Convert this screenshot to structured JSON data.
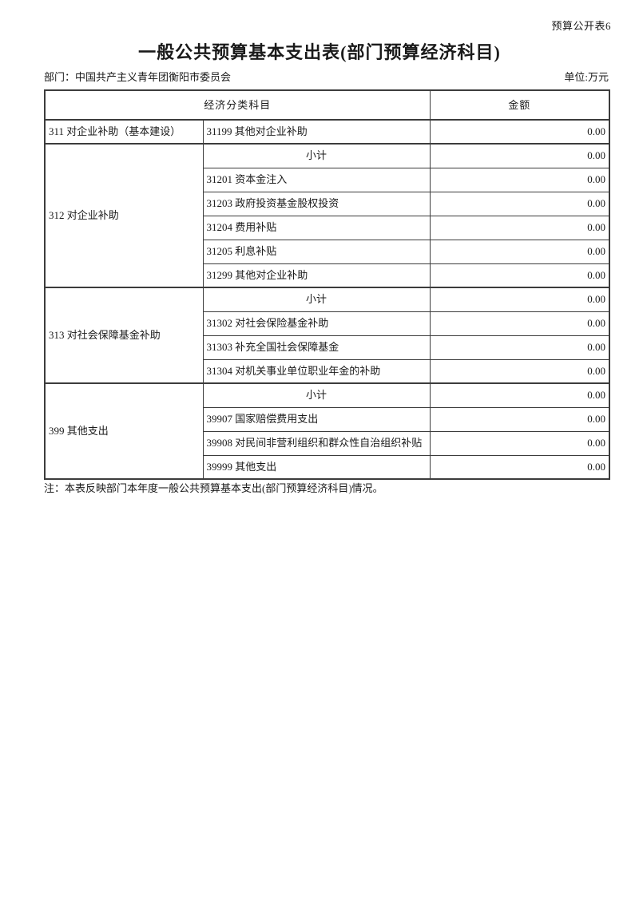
{
  "page": {
    "doc_label": "预算公开表6",
    "title": "一般公共预算基本支出表(部门预算经济科目)",
    "department": "部门：中国共产主义青年团衡阳市委员会",
    "unit": "单位:万元",
    "note": "注：本表反映部门本年度一般公共预算基本支出(部门预算经济科目)情况。"
  },
  "table": {
    "columns": {
      "subject": "经济分类科目",
      "amount": "金额"
    },
    "groups": [
      {
        "category": "311 对企业补助（基本建设）",
        "rows": [
          {
            "item": "31199 其他对企业补助",
            "amount": "0.00",
            "subtotal": false
          }
        ]
      },
      {
        "category": "312 对企业补助",
        "rows": [
          {
            "item": "小计",
            "amount": "0.00",
            "subtotal": true
          },
          {
            "item": "31201 资本金注入",
            "amount": "0.00",
            "subtotal": false
          },
          {
            "item": "31203 政府投资基金股权投资",
            "amount": "0.00",
            "subtotal": false
          },
          {
            "item": "31204 费用补贴",
            "amount": "0.00",
            "subtotal": false
          },
          {
            "item": "31205 利息补贴",
            "amount": "0.00",
            "subtotal": false
          },
          {
            "item": "31299 其他对企业补助",
            "amount": "0.00",
            "subtotal": false
          }
        ]
      },
      {
        "category": "313 对社会保障基金补助",
        "rows": [
          {
            "item": "小计",
            "amount": "0.00",
            "subtotal": true
          },
          {
            "item": "31302 对社会保险基金补助",
            "amount": "0.00",
            "subtotal": false
          },
          {
            "item": "31303 补充全国社会保障基金",
            "amount": "0.00",
            "subtotal": false
          },
          {
            "item": "31304 对机关事业单位职业年金的补助",
            "amount": "0.00",
            "subtotal": false
          }
        ]
      },
      {
        "category": "399 其他支出",
        "rows": [
          {
            "item": "小计",
            "amount": "0.00",
            "subtotal": true
          },
          {
            "item": "39907 国家赔偿费用支出",
            "amount": "0.00",
            "subtotal": false
          },
          {
            "item": "39908 对民间非营利组织和群众性自治组织补贴",
            "amount": "0.00",
            "subtotal": false
          },
          {
            "item": "39999 其他支出",
            "amount": "0.00",
            "subtotal": false
          }
        ]
      }
    ]
  }
}
